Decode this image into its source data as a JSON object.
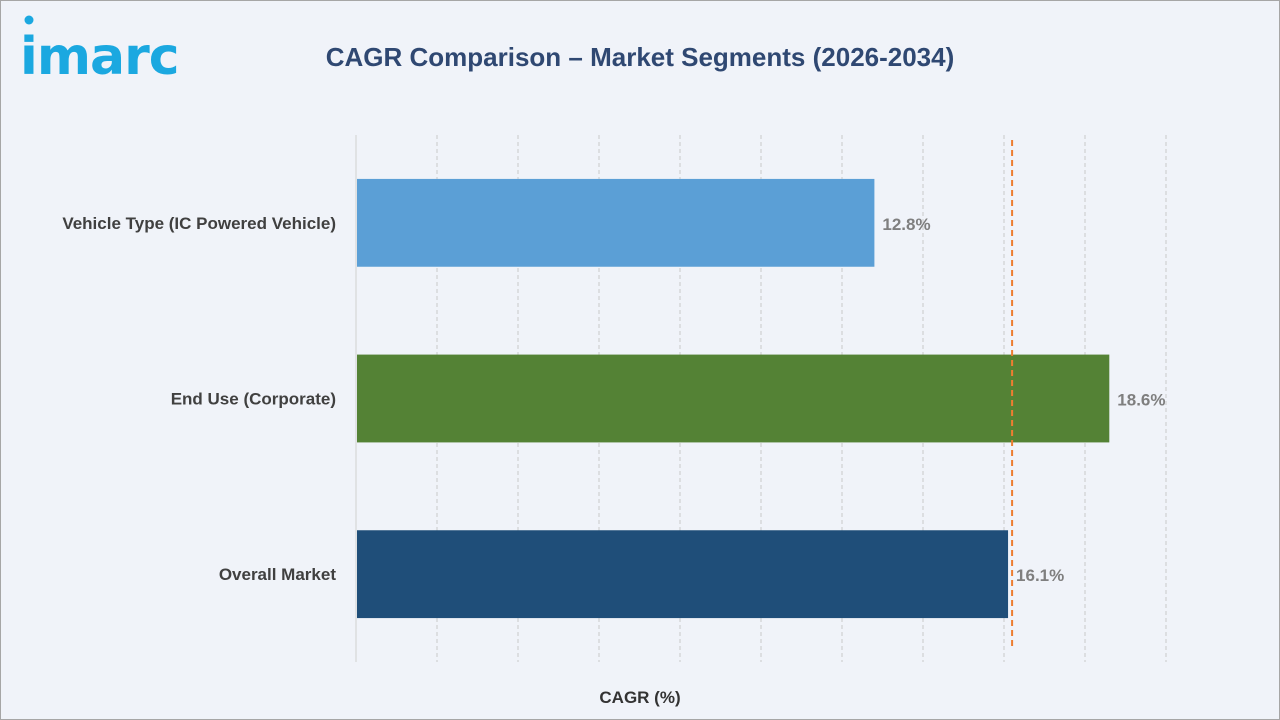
{
  "header": {
    "logo_text": "imarc",
    "title": "CAGR Comparison – Market Segments (2026-2034)"
  },
  "colors": {
    "title": "#2f4872",
    "logo": "#1ba8e0",
    "reference_line": "#ed7d31",
    "gridline": "#c9c9c9",
    "label": "#404040",
    "value_label": "#7f7f7f"
  },
  "chart_data": {
    "type": "bar",
    "orientation": "horizontal",
    "categories": [
      "Vehicle Type (IC Powered Vehicle)",
      "End Use (Corporate)",
      "Overall Market"
    ],
    "values": [
      12.8,
      18.6,
      16.1
    ],
    "value_labels": [
      "12.8%",
      "18.6%",
      "16.1%"
    ],
    "bar_colors": [
      "#5b9fd6",
      "#548235",
      "#1f4e79"
    ],
    "xlabel": "CAGR (%)",
    "ylabel": "",
    "xlim": [
      0,
      20
    ],
    "grid": true,
    "reference_line": {
      "value": 16.2,
      "style": "dashed",
      "color": "#ed7d31"
    }
  }
}
